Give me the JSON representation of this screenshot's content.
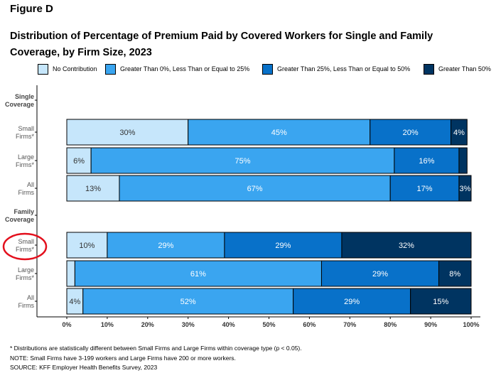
{
  "figure_label": "Figure D",
  "title": "Distribution of Percentage of Premium Paid by Covered Workers for Single and Family Coverage, by Firm Size, 2023",
  "colors": {
    "no_contribution": "#c6e6fb",
    "gt0_le25": "#3aa5f0",
    "gt25_le50": "#0871c9",
    "gt50": "#003461"
  },
  "legend": [
    {
      "label": "No Contribution",
      "color": "#c6e6fb"
    },
    {
      "label": "Greater Than 0%, Less Than or Equal to 25%",
      "color": "#3aa5f0"
    },
    {
      "label": "Greater Than 25%, Less Than or Equal to 50%",
      "color": "#0871c9"
    },
    {
      "label": "Greater Than 50%",
      "color": "#003461"
    }
  ],
  "chart_data": {
    "type": "bar",
    "orientation": "horizontal",
    "stacked": true,
    "xlim": [
      0,
      100
    ],
    "x_ticks": [
      "0%",
      "10%",
      "20%",
      "30%",
      "40%",
      "50%",
      "60%",
      "70%",
      "80%",
      "90%",
      "100%"
    ],
    "series": [
      {
        "name": "No Contribution",
        "color": "#c6e6fb"
      },
      {
        "name": "Greater Than 0%, Less Than or Equal to 25%",
        "color": "#3aa5f0"
      },
      {
        "name": "Greater Than 25%, Less Than or Equal to 50%",
        "color": "#0871c9"
      },
      {
        "name": "Greater Than 50%",
        "color": "#003461"
      }
    ],
    "groups": [
      {
        "heading": [
          "Single",
          "Coverage"
        ],
        "rows": [
          {
            "label": [
              "Small",
              "Firms*"
            ],
            "values": [
              30,
              45,
              20,
              4
            ],
            "labels": [
              "30%",
              "45%",
              "20%",
              "4%"
            ]
          },
          {
            "label": [
              "Large",
              "Firms*"
            ],
            "values": [
              6,
              75,
              16,
              2
            ],
            "labels": [
              "6%",
              "75%",
              "16%",
              ""
            ]
          },
          {
            "label": [
              "All",
              "Firms"
            ],
            "values": [
              13,
              67,
              17,
              3
            ],
            "labels": [
              "13%",
              "67%",
              "17%",
              "3%"
            ]
          }
        ]
      },
      {
        "heading": [
          "Family",
          "Coverage"
        ],
        "rows": [
          {
            "label": [
              "Small",
              "Firms*"
            ],
            "values": [
              10,
              29,
              29,
              32
            ],
            "labels": [
              "10%",
              "29%",
              "29%",
              "32%"
            ],
            "highlighted": true
          },
          {
            "label": [
              "Large",
              "Firms*"
            ],
            "values": [
              2,
              61,
              29,
              8
            ],
            "labels": [
              "",
              "61%",
              "29%",
              "8%"
            ]
          },
          {
            "label": [
              "All",
              "Firms"
            ],
            "values": [
              4,
              52,
              29,
              15
            ],
            "labels": [
              "4%",
              "52%",
              "29%",
              "15%"
            ]
          }
        ]
      }
    ],
    "highlight_color": "#e3101d"
  },
  "footnotes": [
    "* Distributions are statistically different between Small Firms and Large Firms within coverage type (p < 0.05).",
    "NOTE: Small Firms have 3-199 workers and Large Firms have 200 or more workers.",
    "SOURCE: KFF Employer Health Benefits Survey, 2023"
  ]
}
